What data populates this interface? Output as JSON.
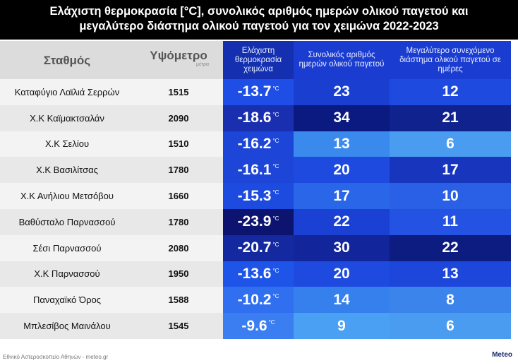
{
  "title": "Ελάχιστη θερμοκρασία [°C], συνολικός αριθμός ημερών ολικού παγετού και μεγαλύτερο διάστημα ολικού παγετού για τον χειμώνα 2022-2023",
  "table": {
    "headers": [
      "Σταθμός",
      "Υψόμετρο",
      "Ελάχιστη θερμοκρασία χειμώνα",
      "Συνολικός αριθμός ημερών ολικού παγετού",
      "Μεγαλύτερο συνεχόμενο διάστημα ολικού παγετού σε ημέρες"
    ],
    "altitude_unit": "μέτρα",
    "temp_unit": "°C",
    "rows": [
      {
        "station": "Καταφύγιο Λαϊλιά Σερρών",
        "altitude": 1515,
        "tmin": -13.7,
        "days": 23,
        "longest": 12,
        "colors": [
          "#1e4ee6",
          "#1a3fd0",
          "#1e4ae0"
        ]
      },
      {
        "station": "Χ.Κ Καϊμακτσαλάν",
        "altitude": 2090,
        "tmin": -18.6,
        "days": 34,
        "longest": 21,
        "colors": [
          "#1a2fb0",
          "#0b1a80",
          "#10228e"
        ]
      },
      {
        "station": "Χ.Κ Σελίου",
        "altitude": 1510,
        "tmin": -16.2,
        "days": 13,
        "longest": 6,
        "colors": [
          "#1d45d8",
          "#3a8aee",
          "#4a9cf0"
        ]
      },
      {
        "station": "Χ.Κ Βασιλίτσας",
        "altitude": 1780,
        "tmin": -16.1,
        "days": 20,
        "longest": 17,
        "colors": [
          "#1d45d8",
          "#1e4ae0",
          "#1836bd"
        ]
      },
      {
        "station": "Χ.Κ Ανήλιου Μετσόβου",
        "altitude": 1660,
        "tmin": -15.3,
        "days": 17,
        "longest": 10,
        "colors": [
          "#1d4be0",
          "#2a66e8",
          "#2a60e6"
        ]
      },
      {
        "station": "Βαθύσταλο Παρνασσού",
        "altitude": 1780,
        "tmin": -23.9,
        "days": 22,
        "longest": 11,
        "colors": [
          "#0c1470",
          "#1a40d4",
          "#2452e2"
        ]
      },
      {
        "station": "Σέσι Παρνασσού",
        "altitude": 2080,
        "tmin": -20.7,
        "days": 30,
        "longest": 22,
        "colors": [
          "#1428a0",
          "#13259a",
          "#0d1c80"
        ]
      },
      {
        "station": "Χ.Κ Παρνασσού",
        "altitude": 1950,
        "tmin": -13.6,
        "days": 20,
        "longest": 13,
        "colors": [
          "#1e55e8",
          "#1e4ae0",
          "#1d46da"
        ]
      },
      {
        "station": "Παναχαϊκό Όρος",
        "altitude": 1588,
        "tmin": -10.2,
        "days": 14,
        "longest": 8,
        "colors": [
          "#2f6ff0",
          "#3580ec",
          "#3a84ec"
        ]
      },
      {
        "station": "Μπλεσίβος Μαινάλου",
        "altitude": 1545,
        "tmin": -9.6,
        "days": 9,
        "longest": 6,
        "colors": [
          "#3a7ef2",
          "#4aa0f2",
          "#4a9cf0"
        ]
      }
    ]
  },
  "footer": "Εθνικό Αστεροσκοπείο Αθηνών - meteo.gr",
  "logo": "Meteo"
}
